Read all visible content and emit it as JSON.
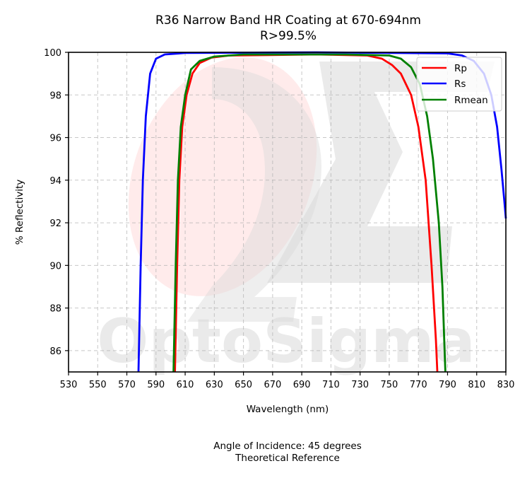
{
  "chart_data": {
    "type": "line",
    "title": "R36 Narrow Band HR Coating at 670-694nm",
    "subtitle": "R>99.5%",
    "xlabel": "Wavelength (nm)",
    "ylabel": "% Reflectivity",
    "xlim": [
      530,
      830
    ],
    "ylim": [
      85,
      100
    ],
    "x_ticks": [
      "530",
      "550",
      "570",
      "590",
      "610",
      "630",
      "650",
      "670",
      "690",
      "710",
      "730",
      "750",
      "770",
      "790",
      "810",
      "830"
    ],
    "y_ticks": [
      "86",
      "88",
      "90",
      "92",
      "94",
      "96",
      "98",
      "100"
    ],
    "grid": true,
    "legend_position": "top-right",
    "series": [
      {
        "name": "Rp",
        "color": "#ff0000",
        "points": [
          [
            603,
            85
          ],
          [
            604.5,
            90
          ],
          [
            606,
            94
          ],
          [
            608,
            96.5
          ],
          [
            611,
            98
          ],
          [
            615,
            99
          ],
          [
            620,
            99.5
          ],
          [
            628,
            99.75
          ],
          [
            640,
            99.85
          ],
          [
            700,
            99.9
          ],
          [
            735,
            99.85
          ],
          [
            745,
            99.7
          ],
          [
            752,
            99.4
          ],
          [
            758,
            99
          ],
          [
            765,
            98
          ],
          [
            770,
            96.5
          ],
          [
            775,
            94
          ],
          [
            779,
            90
          ],
          [
            782,
            86.5
          ],
          [
            783,
            85
          ]
        ]
      },
      {
        "name": "Rs",
        "color": "#0000ff",
        "points": [
          [
            578,
            85
          ],
          [
            579.5,
            90
          ],
          [
            581,
            94
          ],
          [
            583,
            97
          ],
          [
            586,
            99
          ],
          [
            590,
            99.7
          ],
          [
            596,
            99.9
          ],
          [
            610,
            99.97
          ],
          [
            700,
            100
          ],
          [
            790,
            99.95
          ],
          [
            800,
            99.85
          ],
          [
            808,
            99.6
          ],
          [
            815,
            99
          ],
          [
            820,
            98
          ],
          [
            824,
            96.5
          ],
          [
            827,
            94.5
          ],
          [
            829,
            93
          ],
          [
            830,
            92.2
          ]
        ]
      },
      {
        "name": "Rmean",
        "color": "#008000",
        "points": [
          [
            602,
            85
          ],
          [
            603.5,
            90
          ],
          [
            605,
            94
          ],
          [
            607,
            96.5
          ],
          [
            610,
            98
          ],
          [
            614,
            99.2
          ],
          [
            620,
            99.6
          ],
          [
            630,
            99.8
          ],
          [
            650,
            99.9
          ],
          [
            720,
            99.9
          ],
          [
            750,
            99.85
          ],
          [
            758,
            99.7
          ],
          [
            765,
            99.3
          ],
          [
            771,
            98.5
          ],
          [
            776,
            97
          ],
          [
            780,
            95
          ],
          [
            784,
            92
          ],
          [
            786.5,
            89
          ],
          [
            788,
            86
          ],
          [
            788.5,
            85
          ]
        ]
      }
    ]
  },
  "watermark": {
    "text": "OptoSigma"
  },
  "footer": {
    "line1": "Angle of Incidence: 45 degrees",
    "line2": "Theoretical Reference"
  }
}
